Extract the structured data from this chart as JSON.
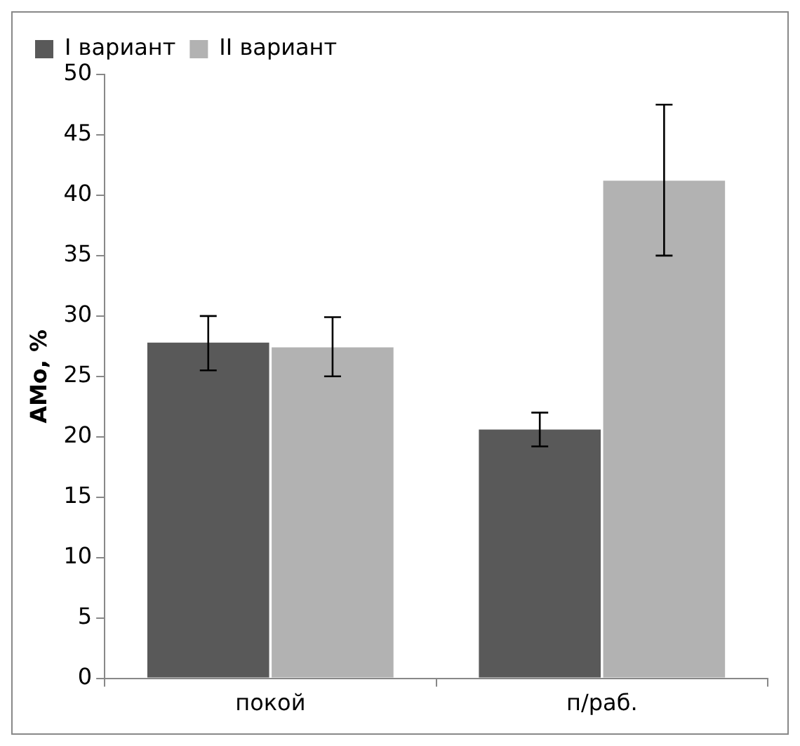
{
  "chart_data": {
    "type": "bar",
    "ylabel": "AMo, %",
    "categories": [
      "покой",
      "п/раб."
    ],
    "series": [
      {
        "name": "I вариант",
        "color": "#595959",
        "values": [
          27.8,
          20.6
        ],
        "errors": [
          [
            25.5,
            30
          ],
          [
            19.2,
            22
          ]
        ]
      },
      {
        "name": "II вариант",
        "color": "#b2b2b2",
        "values": [
          27.4,
          41.2
        ],
        "errors": [
          [
            25,
            29.9
          ],
          [
            35,
            47.5
          ]
        ]
      }
    ],
    "ylim": [
      0,
      50
    ],
    "yticks": [
      0,
      5,
      10,
      15,
      20,
      25,
      30,
      35,
      40,
      45,
      50
    ],
    "grid": false,
    "legend": "top left"
  }
}
